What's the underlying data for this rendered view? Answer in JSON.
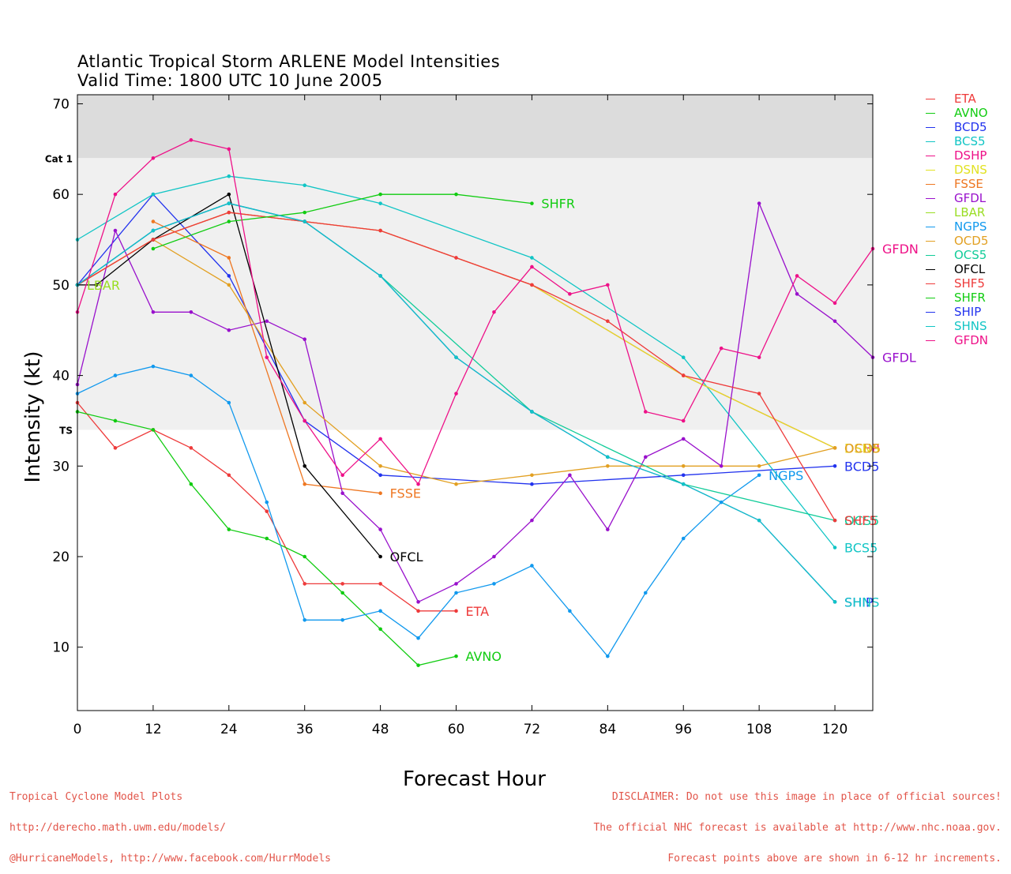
{
  "header": {
    "title_line1": "Atlantic Tropical Storm ARLENE Model Intensities",
    "title_line2": "Valid Time: 1800 UTC 10 June 2005"
  },
  "footer": {
    "left_lines": [
      "Tropical Cyclone Model Plots",
      "http://derecho.math.uwm.edu/models/",
      "@HurricaneModels, http://www.facebook.com/HurrModels"
    ],
    "right_lines": [
      "DISCLAIMER: Do not use this image in place of official sources!",
      "The official NHC forecast is available at http://www.nhc.noaa.gov.",
      "Forecast points above are shown in 6-12 hr increments."
    ]
  },
  "chart_data": {
    "type": "line",
    "xlabel": "Forecast Hour",
    "ylabel": "Intensity (kt)",
    "xlim": [
      0,
      126
    ],
    "ylim": [
      3,
      71
    ],
    "xticks": [
      "0",
      "12",
      "24",
      "36",
      "48",
      "60",
      "72",
      "84",
      "96",
      "108",
      "120"
    ],
    "yticks": [
      "10",
      "20",
      "30",
      "40",
      "50",
      "60",
      "70"
    ],
    "bands": [
      {
        "label": "Cat 1",
        "from": 64,
        "to": 71,
        "color": "#dcdcdc"
      },
      {
        "label": "TS",
        "from": 34,
        "to": 64,
        "color": "#f0f0f0"
      }
    ],
    "legend_position": "right",
    "series": [
      {
        "name": "ETA",
        "color": "#ee3b3b",
        "label": "ETA",
        "x": [
          0,
          6,
          12,
          18,
          24,
          30,
          36,
          42,
          48,
          54,
          60
        ],
        "y": [
          37,
          32,
          34,
          32,
          29,
          25,
          17,
          17,
          17,
          14,
          14
        ]
      },
      {
        "name": "AVNO",
        "color": "#11cc11",
        "label": "AVNO",
        "x": [
          0,
          6,
          12,
          18,
          24,
          30,
          36,
          42,
          48,
          54,
          60
        ],
        "y": [
          36,
          35,
          34,
          28,
          23,
          22,
          20,
          16,
          12,
          8,
          9
        ]
      },
      {
        "name": "BCD5",
        "color": "#2233ee",
        "label": "BCD5",
        "x": [
          0,
          12,
          24,
          36,
          48,
          72,
          96,
          120
        ],
        "y": [
          50,
          60,
          51,
          35,
          29,
          28,
          29,
          30
        ]
      },
      {
        "name": "BCS5",
        "color": "#11c5c5",
        "label": "BCS5",
        "x": [
          0,
          12,
          24,
          36,
          48,
          72,
          96,
          120
        ],
        "y": [
          55,
          60,
          62,
          61,
          59,
          53,
          42,
          21
        ]
      },
      {
        "name": "DSHP",
        "color": "#ee1188",
        "label": "DSHP",
        "x": [
          0,
          12,
          24,
          36,
          48,
          72,
          96,
          120
        ],
        "y": [
          50,
          55,
          58,
          57,
          56,
          50,
          40,
          32
        ]
      },
      {
        "name": "DSNS",
        "color": "#e2e222",
        "label": "DSNS",
        "x": [
          0,
          12,
          24,
          36,
          48,
          72,
          96,
          120
        ],
        "y": [
          50,
          55,
          58,
          57,
          56,
          50,
          40,
          32
        ]
      },
      {
        "name": "FSSE",
        "color": "#ee7722",
        "label": "FSSE",
        "x": [
          12,
          24,
          36,
          48
        ],
        "y": [
          57,
          53,
          28,
          27
        ]
      },
      {
        "name": "GFDL",
        "color": "#9911cc",
        "label": "GFDL",
        "x": [
          0,
          6,
          12,
          18,
          24,
          30,
          36,
          42,
          48,
          54,
          60,
          66,
          72,
          78,
          84,
          90,
          96,
          102,
          108,
          114,
          120,
          126
        ],
        "y": [
          39,
          56,
          47,
          47,
          45,
          46,
          44,
          27,
          23,
          15,
          17,
          20,
          24,
          29,
          23,
          31,
          33,
          30,
          59,
          49,
          46,
          42
        ]
      },
      {
        "name": "LBAR",
        "color": "#99dd22",
        "label": "LBAR",
        "x": [
          0
        ],
        "y": [
          50
        ]
      },
      {
        "name": "NGPS",
        "color": "#1199ee",
        "label": "NGPS",
        "x": [
          0,
          6,
          12,
          18,
          24,
          30,
          36,
          42,
          48,
          54,
          60,
          66,
          72,
          78,
          84,
          90,
          96,
          102,
          108
        ],
        "y": [
          38,
          40,
          41,
          40,
          37,
          26,
          13,
          13,
          14,
          11,
          16,
          17,
          19,
          14,
          9,
          16,
          22,
          26,
          29
        ]
      },
      {
        "name": "OCD5",
        "color": "#e2a022",
        "label": "OCD5",
        "x": [
          0,
          12,
          24,
          36,
          48,
          60,
          72,
          84,
          96,
          108,
          120
        ],
        "y": [
          50,
          55,
          50,
          37,
          30,
          28,
          29,
          30,
          30,
          30,
          32
        ]
      },
      {
        "name": "OCS5",
        "color": "#11cc99",
        "label": "OCS5",
        "x": [
          0,
          12,
          24,
          36,
          48,
          72,
          96,
          120
        ],
        "y": [
          50,
          56,
          59,
          57,
          51,
          36,
          28,
          24
        ]
      },
      {
        "name": "OFCL",
        "color": "#000000",
        "label": "OFCL",
        "x": [
          0,
          3,
          12,
          24,
          36,
          48
        ],
        "y": [
          50,
          50,
          55,
          60,
          30,
          20
        ]
      },
      {
        "name": "SHF5",
        "color": "#ee3b3b",
        "label": "SHF5",
        "x": [
          0,
          12,
          24,
          36,
          48,
          60,
          72,
          84,
          96,
          108,
          120
        ],
        "y": [
          50,
          55,
          58,
          57,
          56,
          53,
          50,
          46,
          40,
          38,
          24
        ]
      },
      {
        "name": "SHFR",
        "color": "#11cc11",
        "label": "SHFR",
        "x": [
          12,
          24,
          36,
          48,
          60,
          72
        ],
        "y": [
          54,
          57,
          58,
          60,
          60,
          59
        ]
      },
      {
        "name": "SHIP",
        "color": "#2233ee",
        "label": "SHIP",
        "x": [
          0,
          12,
          24,
          36,
          48,
          60,
          72,
          84,
          96,
          108,
          120
        ],
        "y": [
          50,
          56,
          59,
          57,
          51,
          42,
          36,
          31,
          28,
          24,
          15
        ]
      },
      {
        "name": "SHNS",
        "color": "#11c5c5",
        "label": "SHNS",
        "x": [
          0,
          12,
          24,
          36,
          48,
          60,
          72,
          84,
          96,
          108,
          120
        ],
        "y": [
          50,
          56,
          59,
          57,
          51,
          42,
          36,
          31,
          28,
          24,
          15
        ]
      },
      {
        "name": "GFDN",
        "color": "#ee1188",
        "label": "GFDN",
        "x": [
          0,
          6,
          12,
          18,
          24,
          30,
          36,
          42,
          48,
          54,
          60,
          66,
          72,
          78,
          84,
          90,
          96,
          102,
          108,
          114,
          120,
          126
        ],
        "y": [
          47,
          60,
          64,
          66,
          65,
          42,
          35,
          29,
          33,
          28,
          38,
          47,
          52,
          49,
          50,
          36,
          35,
          43,
          42,
          51,
          48,
          54
        ]
      }
    ]
  }
}
